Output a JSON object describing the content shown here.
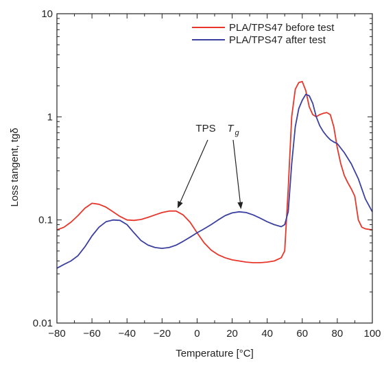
{
  "chart_data": {
    "type": "line",
    "xlabel": "Temperature [°C]",
    "ylabel": "Loss tangent, tgδ",
    "xlim": [
      -80,
      100
    ],
    "ylim": [
      0.01,
      10
    ],
    "yscale": "log",
    "x_ticks": [
      "−80",
      "−60",
      "−40",
      "−20",
      "0",
      "20",
      "40",
      "60",
      "80",
      "100"
    ],
    "x_tick_values": [
      -80,
      -60,
      -40,
      -20,
      0,
      20,
      40,
      60,
      80,
      100
    ],
    "y_ticks": [
      "0.01",
      "0.1",
      "1",
      "10"
    ],
    "y_tick_values": [
      0.01,
      0.1,
      1,
      10
    ],
    "legend_position": "top-right",
    "series": [
      {
        "name": "PLA/TPS47 before test",
        "color": "#e8352a",
        "x": [
          -80,
          -76,
          -72,
          -68,
          -64,
          -60,
          -56,
          -52,
          -48,
          -44,
          -40,
          -36,
          -32,
          -28,
          -24,
          -20,
          -16,
          -12,
          -8,
          -4,
          0,
          4,
          8,
          12,
          16,
          20,
          24,
          28,
          32,
          36,
          40,
          44,
          48,
          50,
          52,
          54,
          56,
          58,
          60,
          62,
          64,
          66,
          68,
          70,
          72,
          74,
          76,
          78,
          80,
          82,
          84,
          86,
          88,
          90,
          92,
          94,
          96,
          100
        ],
        "y": [
          0.08,
          0.085,
          0.095,
          0.11,
          0.13,
          0.145,
          0.142,
          0.133,
          0.12,
          0.108,
          0.1,
          0.099,
          0.101,
          0.106,
          0.112,
          0.118,
          0.122,
          0.122,
          0.112,
          0.095,
          0.075,
          0.06,
          0.051,
          0.046,
          0.043,
          0.041,
          0.04,
          0.039,
          0.0385,
          0.0385,
          0.039,
          0.04,
          0.043,
          0.05,
          0.2,
          1.0,
          1.85,
          2.15,
          2.2,
          1.8,
          1.25,
          1.05,
          1.0,
          1.05,
          1.08,
          1.1,
          1.05,
          0.8,
          0.5,
          0.35,
          0.27,
          0.23,
          0.2,
          0.17,
          0.1,
          0.085,
          0.082,
          0.08
        ]
      },
      {
        "name": "PLA/TPS47 after test",
        "color": "#3a3fa0",
        "x": [
          -80,
          -76,
          -72,
          -68,
          -64,
          -60,
          -56,
          -52,
          -48,
          -44,
          -40,
          -36,
          -32,
          -28,
          -24,
          -20,
          -16,
          -12,
          -8,
          -4,
          0,
          4,
          8,
          12,
          16,
          20,
          24,
          28,
          32,
          36,
          40,
          44,
          48,
          50,
          52,
          54,
          56,
          58,
          60,
          62,
          64,
          66,
          68,
          70,
          72,
          74,
          76,
          78,
          80,
          84,
          88,
          92,
          96,
          100
        ],
        "y": [
          0.034,
          0.037,
          0.04,
          0.045,
          0.055,
          0.07,
          0.085,
          0.096,
          0.1,
          0.099,
          0.09,
          0.075,
          0.063,
          0.057,
          0.054,
          0.053,
          0.054,
          0.057,
          0.062,
          0.068,
          0.075,
          0.082,
          0.09,
          0.1,
          0.11,
          0.117,
          0.12,
          0.118,
          0.112,
          0.104,
          0.096,
          0.09,
          0.086,
          0.09,
          0.12,
          0.35,
          0.8,
          1.2,
          1.45,
          1.65,
          1.6,
          1.35,
          1.0,
          0.82,
          0.72,
          0.65,
          0.6,
          0.57,
          0.55,
          0.45,
          0.35,
          0.25,
          0.16,
          0.12
        ]
      }
    ],
    "annotations": [
      {
        "text": "TPS",
        "target_x": -11,
        "target_y": 0.122
      },
      {
        "text": "T",
        "subscript": "g",
        "target_x": 25,
        "target_y": 0.12
      }
    ]
  }
}
